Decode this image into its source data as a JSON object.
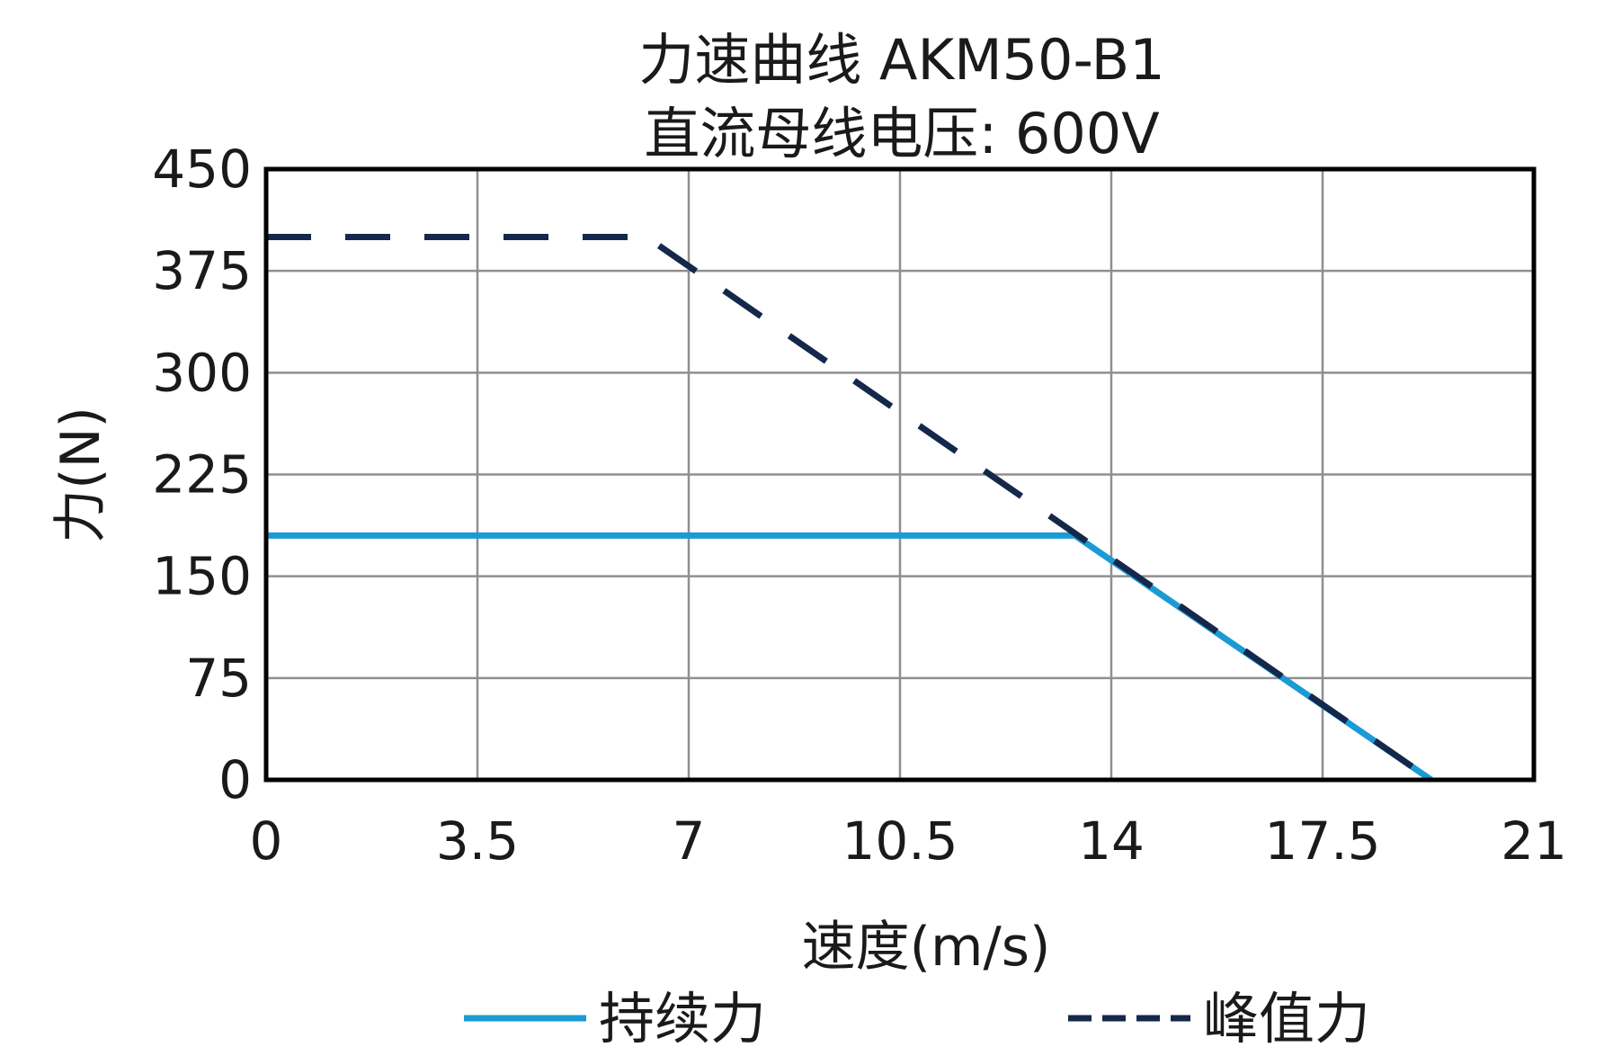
{
  "chart_data": {
    "type": "line",
    "title": [
      "力速曲线 AKM50-B1",
      "直流母线电压: 600V"
    ],
    "xlabel": "速度(m/s)",
    "ylabel": "力(N)",
    "xlim": [
      0,
      21
    ],
    "ylim": [
      0,
      450
    ],
    "xticks": [
      "0",
      "3.5",
      "7",
      "10.5",
      "14",
      "17.5",
      "21"
    ],
    "xtick_values": [
      0,
      3.5,
      7,
      10.5,
      14,
      17.5,
      21
    ],
    "yticks": [
      "0",
      "75",
      "150",
      "225",
      "300",
      "375",
      "450"
    ],
    "ytick_values": [
      0,
      75,
      150,
      225,
      300,
      375,
      450
    ],
    "grid": true,
    "legend_position": "bottom",
    "series": [
      {
        "name": "持续力",
        "style": "solid",
        "color": "#1b9ad6",
        "x": [
          0,
          13.4,
          19.3
        ],
        "y": [
          180,
          180,
          0
        ]
      },
      {
        "name": "峰值力",
        "style": "dashed",
        "color": "#14284b",
        "x": [
          0,
          6.3,
          19.3
        ],
        "y": [
          400,
          400,
          0
        ]
      }
    ]
  }
}
